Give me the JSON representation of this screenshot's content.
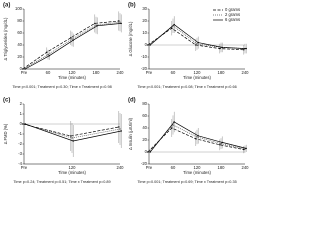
{
  "chart_data": [
    {
      "type": "line",
      "title": "(a)",
      "y_label": "Δ Triglycerides (mg/dL)",
      "x_label": "Time (minutes)",
      "caption": "Time p<0.001; Treatment p=0.30; Time x Treatment p=0.98",
      "categories": [
        "Pre",
        "60",
        "120",
        "180",
        "240"
      ],
      "ylim": [
        0,
        100
      ],
      "yticks": [
        0,
        20,
        40,
        60,
        80,
        100
      ],
      "series": [
        {
          "color": "#000000",
          "style": "dashed",
          "values": [
            0,
            28,
            52,
            76,
            80
          ],
          "errors": [
            0,
            8,
            12,
            15,
            16
          ]
        },
        {
          "color": "#555555",
          "style": "dotted",
          "values": [
            0,
            24,
            50,
            73,
            78
          ],
          "errors": [
            0,
            8,
            12,
            14,
            15
          ]
        },
        {
          "color": "#000000",
          "style": "solid",
          "values": [
            0,
            22,
            48,
            72,
            76
          ],
          "errors": [
            0,
            7,
            11,
            14,
            15
          ]
        }
      ]
    },
    {
      "type": "line",
      "title": "(b)",
      "y_label": "Δ Glucose (mg/dL)",
      "x_label": "Time (minutes)",
      "caption": "Time p<0.001; Treatment p=0.08; Time x Treatment p=0.66",
      "categories": [
        "Pre",
        "60",
        "120",
        "180",
        "240"
      ],
      "ylim": [
        -20,
        30
      ],
      "yticks": [
        -20,
        -10,
        0,
        10,
        20,
        30
      ],
      "legend": "upper right",
      "series": [
        {
          "name": "0 grams",
          "color": "#000000",
          "style": "dashed",
          "values": [
            0,
            14,
            0,
            -3,
            -4
          ],
          "errors": [
            0,
            6,
            5,
            4,
            4
          ]
        },
        {
          "name": "2 grams",
          "color": "#555555",
          "style": "dotted",
          "values": [
            0,
            16,
            1,
            -2,
            -3
          ],
          "errors": [
            0,
            6,
            5,
            4,
            4
          ]
        },
        {
          "name": "6 grams",
          "color": "#000000",
          "style": "solid",
          "values": [
            0,
            17,
            2,
            -2,
            -3
          ],
          "errors": [
            0,
            7,
            5,
            4,
            4
          ]
        }
      ]
    },
    {
      "type": "line",
      "title": "(c)",
      "y_label": "Δ FMD (%)",
      "x_label": "Time (minutes)",
      "caption": "Time p=0.24; Treatment p=0.51; Time x Treatment p=0.89",
      "categories": [
        "Pre",
        "120",
        "240"
      ],
      "ylim": [
        -4,
        2
      ],
      "yticks": [
        -4,
        -3,
        -2,
        -1,
        0,
        1,
        2
      ],
      "series": [
        {
          "color": "#000000",
          "style": "dashed",
          "values": [
            0,
            -1.2,
            -0.3
          ],
          "errors": [
            0,
            1.5,
            1.6
          ]
        },
        {
          "color": "#555555",
          "style": "dotted",
          "values": [
            0,
            -1.4,
            -0.5
          ],
          "errors": [
            0,
            1.5,
            1.6
          ]
        },
        {
          "color": "#000000",
          "style": "solid",
          "values": [
            0,
            -1.7,
            -0.7
          ],
          "errors": [
            0,
            1.6,
            1.7
          ]
        }
      ]
    },
    {
      "type": "line",
      "title": "(d)",
      "y_label": "Δ Insulin (μIU/ml)",
      "x_label": "Time (minutes)",
      "caption": "Time p=0.001; Treatment p=0.69; Time x Treatment p=0.35",
      "categories": [
        "Pre",
        "60",
        "120",
        "180",
        "240"
      ],
      "ylim": [
        -20,
        80
      ],
      "yticks": [
        -20,
        0,
        20,
        40,
        60,
        80
      ],
      "series": [
        {
          "color": "#000000",
          "style": "dashed",
          "values": [
            0,
            40,
            22,
            12,
            4
          ],
          "errors": [
            0,
            15,
            12,
            9,
            6
          ]
        },
        {
          "color": "#555555",
          "style": "dotted",
          "values": [
            0,
            45,
            25,
            14,
            5
          ],
          "errors": [
            0,
            16,
            12,
            9,
            6
          ]
        },
        {
          "color": "#000000",
          "style": "solid",
          "values": [
            0,
            50,
            27,
            16,
            6
          ],
          "errors": [
            0,
            17,
            13,
            10,
            6
          ]
        }
      ]
    }
  ]
}
